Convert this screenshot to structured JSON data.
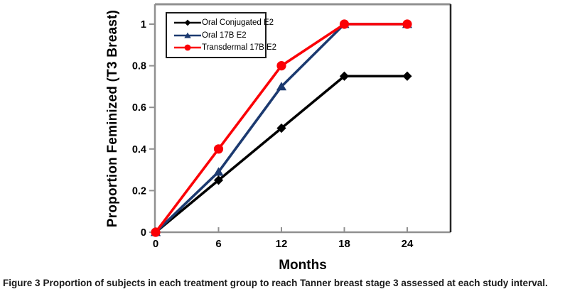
{
  "figure": {
    "caption_label": "Figure 3",
    "caption_text": "Proportion of subjects in each treatment group to reach Tanner breast stage 3 assessed at each study interval."
  },
  "chart_data": {
    "type": "line",
    "title": "",
    "xlabel": "Months",
    "ylabel": "Proportion Feminized (T3 Breast)",
    "x": [
      0,
      6,
      12,
      18,
      24
    ],
    "x_tick_labels": [
      "0",
      "6",
      "12",
      "18",
      "24"
    ],
    "y_ticks": [
      0,
      0.2,
      0.4,
      0.6,
      0.8,
      1
    ],
    "y_tick_labels": [
      "0",
      "0.2",
      "0.4",
      "0.6",
      "0.8",
      "1"
    ],
    "xlim": [
      0,
      28
    ],
    "ylim": [
      0,
      1.1
    ],
    "grid": false,
    "legend_position": "top-left",
    "series": [
      {
        "name": "Oral Conjugated E2",
        "color": "#000000",
        "marker": "diamond",
        "values": [
          0,
          0.25,
          0.5,
          0.75,
          0.75
        ]
      },
      {
        "name": "Oral 17B E2",
        "color": "#1C3A70",
        "marker": "triangle",
        "values": [
          0,
          0.29,
          0.7,
          1.0,
          1.0
        ]
      },
      {
        "name": "Transdermal 17B E2",
        "color": "#FB0006",
        "marker": "circle",
        "values": [
          0,
          0.4,
          0.8,
          1.0,
          1.0
        ]
      }
    ],
    "axis_color": "#909090",
    "frame_right_color": "#262626",
    "tick_text_color": "#000000"
  }
}
